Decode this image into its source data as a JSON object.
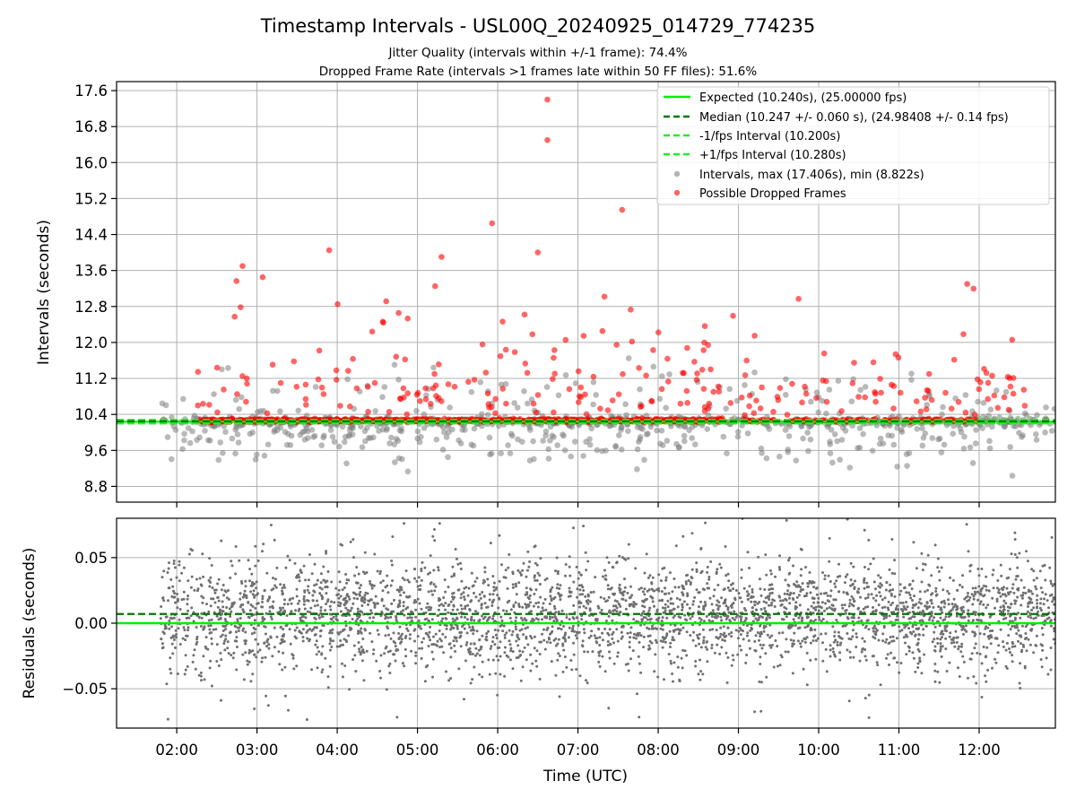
{
  "title": "Timestamp Intervals - USL00Q_20240925_014729_774235",
  "subtitle_line1": "Jitter Quality (intervals within +/-1 frame): 74.4%",
  "subtitle_line2": "Dropped Frame Rate (intervals >1 frames late within 50 FF files): 51.6%",
  "colors": {
    "expected": "#00ee00",
    "median": "#007700",
    "interval_band": "#22ee22",
    "intervals": "#808080",
    "dropped": "#ff0000",
    "residuals": "#707070"
  },
  "chart_data": [
    {
      "type": "scatter",
      "name": "intervals-panel",
      "ylabel": "Intervals (seconds)",
      "xlabel": "",
      "x_unit": "hours UTC",
      "xlim": [
        1.25,
        12.95
      ],
      "ylim": [
        8.45,
        17.8
      ],
      "yticks": [
        8.8,
        9.6,
        10.4,
        11.2,
        12.0,
        12.8,
        13.6,
        14.4,
        15.2,
        16.0,
        16.8,
        17.6
      ],
      "ytick_labels": [
        "8.8",
        "9.6",
        "10.4",
        "11.2",
        "12.0",
        "12.8",
        "13.6",
        "14.4",
        "15.2",
        "16.0",
        "16.8",
        "17.6"
      ],
      "grid": true,
      "legend_placement": "top-right",
      "reference_lines": [
        {
          "label": "Expected (10.240s), (25.00000 fps)",
          "y": 10.24,
          "style": "solid"
        },
        {
          "label": "Median (10.247 +/- 0.060 s), (24.98408 +/- 0.14 fps)",
          "y": 10.247,
          "style": "dashed"
        },
        {
          "label": "-1/fps Interval (10.200s)",
          "y": 10.2,
          "style": "dashed"
        },
        {
          "label": "+1/fps Interval (10.280s)",
          "y": 10.28,
          "style": "dashed"
        }
      ],
      "series": [
        {
          "name": "Intervals, max (17.406s), min (8.822s)",
          "marker": "gray-circle"
        },
        {
          "name": "Possible Dropped Frames",
          "marker": "red-circle",
          "notable_points": [
            {
              "x": 6.62,
              "y": 17.4
            },
            {
              "x": 6.62,
              "y": 16.5
            },
            {
              "x": 7.55,
              "y": 14.95
            },
            {
              "x": 5.93,
              "y": 14.65
            },
            {
              "x": 3.9,
              "y": 14.05
            },
            {
              "x": 6.5,
              "y": 14.0
            },
            {
              "x": 5.3,
              "y": 13.9
            },
            {
              "x": 2.82,
              "y": 13.7
            },
            {
              "x": 3.07,
              "y": 13.45
            },
            {
              "x": 11.85,
              "y": 13.3
            },
            {
              "x": 5.22,
              "y": 13.25
            },
            {
              "x": 9.75,
              "y": 12.97
            },
            {
              "x": 7.33,
              "y": 13.02
            }
          ]
        }
      ]
    },
    {
      "type": "scatter",
      "name": "residuals-panel",
      "ylabel": "Residuals (seconds)",
      "xlabel": "Time (UTC)",
      "x_unit": "hours UTC",
      "xlim": [
        1.25,
        12.95
      ],
      "ylim": [
        -0.08,
        0.08
      ],
      "yticks": [
        -0.05,
        0.0,
        0.05
      ],
      "ytick_labels": [
        "−0.05",
        "0.00",
        "0.05"
      ],
      "xticks": [
        2,
        3,
        4,
        5,
        6,
        7,
        8,
        9,
        10,
        11,
        12
      ],
      "xtick_labels": [
        "02:00",
        "03:00",
        "04:00",
        "05:00",
        "06:00",
        "07:00",
        "08:00",
        "09:00",
        "10:00",
        "11:00",
        "12:00"
      ],
      "grid": true,
      "reference_lines": [
        {
          "name": "expected",
          "y": 0.0,
          "style": "solid"
        },
        {
          "name": "median",
          "y": 0.007,
          "style": "dashed"
        }
      ]
    }
  ]
}
